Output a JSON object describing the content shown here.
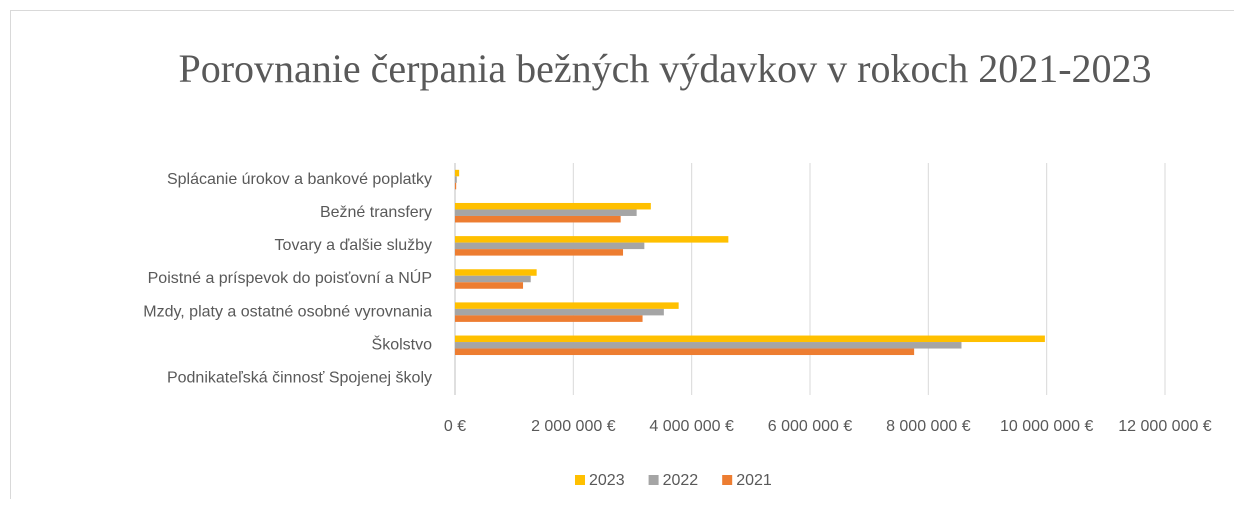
{
  "chart_data": {
    "type": "barh",
    "title": "Porovnanie čerpania bežných výdavkov v rokoch 2021-2023",
    "categories": [
      "Splácanie úrokov a bankové poplatky",
      "Bežné transfery",
      "Tovary a ďalšie služby",
      "Poistné a príspevok do poisťovní a NÚP",
      "Mzdy, platy a ostatné osobné vyrovnania",
      "Školstvo",
      "Podnikateľská činnosť Spojenej školy"
    ],
    "series": [
      {
        "name": "2023",
        "color": "#ffc000",
        "values": [
          70000,
          3310000,
          4620000,
          1380000,
          3780000,
          9970000,
          0
        ]
      },
      {
        "name": "2022",
        "color": "#a5a5a5",
        "values": [
          30000,
          3070000,
          3200000,
          1280000,
          3530000,
          8560000,
          0
        ]
      },
      {
        "name": "2021",
        "color": "#ed7d31",
        "values": [
          20000,
          2800000,
          2840000,
          1150000,
          3170000,
          7760000,
          0
        ]
      }
    ],
    "xlim": [
      0,
      12000000
    ],
    "xticks": [
      {
        "value": 0,
        "label": "0 €"
      },
      {
        "value": 2000000,
        "label": "2 000 000 €"
      },
      {
        "value": 4000000,
        "label": "4 000 000 €"
      },
      {
        "value": 6000000,
        "label": "6 000 000 €"
      },
      {
        "value": 8000000,
        "label": "8 000 000 €"
      },
      {
        "value": 10000000,
        "label": "10 000 000 €"
      },
      {
        "value": 12000000,
        "label": "12 000 000 €"
      }
    ],
    "grid": true,
    "legend": "bottom"
  }
}
